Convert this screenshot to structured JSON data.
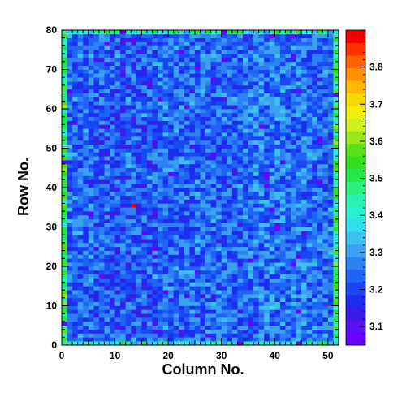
{
  "chart_data": {
    "type": "heatmap",
    "xlabel": "Column No.",
    "ylabel": "Row No.",
    "xlim": [
      0,
      52
    ],
    "ylim": [
      0,
      80
    ],
    "x_bins": 52,
    "y_bins": 80,
    "x_ticks": [
      0,
      10,
      20,
      30,
      40,
      50
    ],
    "y_ticks": [
      0,
      10,
      20,
      30,
      40,
      50,
      60,
      70,
      80
    ],
    "z_range": [
      3.05,
      3.9
    ],
    "z_ticks": [
      3.1,
      3.2,
      3.3,
      3.4,
      3.5,
      3.6,
      3.7,
      3.8
    ],
    "colorbar": "right",
    "palette": [
      "#6a00ff",
      "#5a10f0",
      "#3a1ce8",
      "#1e2cf0",
      "#1848f5",
      "#2064f5",
      "#2c82f5",
      "#3ca0f2",
      "#3cc0f0",
      "#2ee0ec",
      "#26f0d8",
      "#2af0b0",
      "#2af080",
      "#24e848",
      "#30e020",
      "#5ae018",
      "#96e81a",
      "#d0f01e",
      "#f0f000",
      "#f8d800",
      "#ffb800",
      "#ff9000",
      "#ff6000",
      "#ff3000",
      "#f00000"
    ],
    "notable_cells": [
      {
        "x": 13.5,
        "y": 35.5,
        "value": 3.88
      }
    ],
    "summary": {
      "typical_range": [
        3.15,
        3.35
      ],
      "edge_columns_higher": [
        0,
        51
      ],
      "low_region_columns": [
        6,
        17
      ]
    }
  }
}
